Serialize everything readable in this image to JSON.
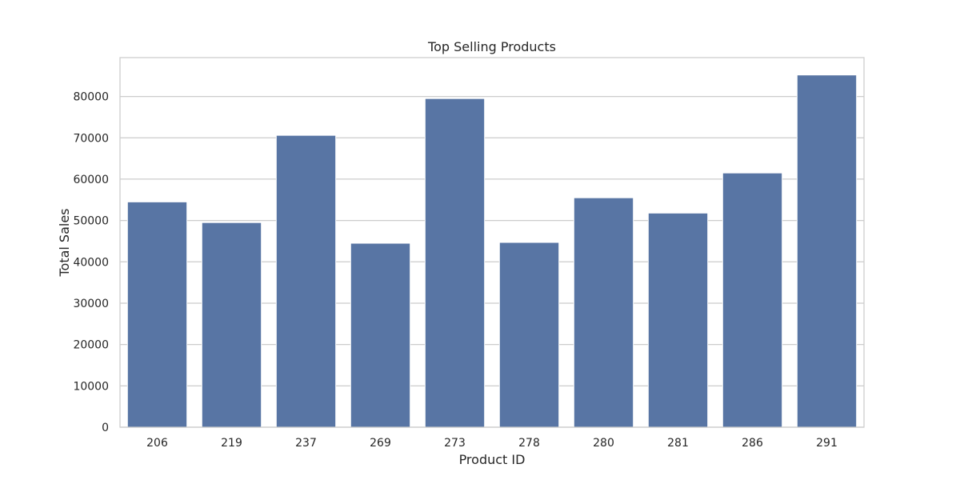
{
  "chart_data": {
    "type": "bar",
    "title": "Top Selling Products",
    "xlabel": "Product ID",
    "ylabel": "Total Sales",
    "categories": [
      "206",
      "219",
      "237",
      "269",
      "273",
      "278",
      "280",
      "281",
      "286",
      "291"
    ],
    "values": [
      54500,
      49500,
      70600,
      44500,
      79500,
      44700,
      55500,
      51800,
      61500,
      85200
    ],
    "ylim": [
      0,
      89400
    ],
    "yticks": [
      0,
      10000,
      20000,
      30000,
      40000,
      50000,
      60000,
      70000,
      80000
    ],
    "grid": true,
    "bar_color": "#5875a4",
    "grid_color": "#cccccc",
    "spine_color": "#cccccc"
  }
}
